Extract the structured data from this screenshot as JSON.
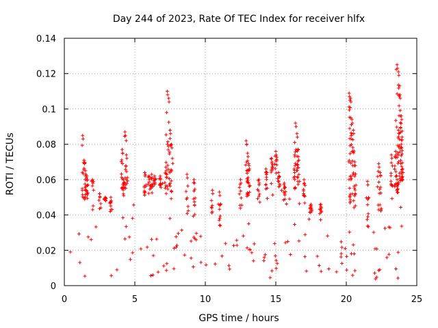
{
  "chart_data": {
    "type": "scatter",
    "title": "Day 244 of 2023, Rate Of TEC Index for receiver hlfx",
    "xlabel": "GPS time / hours",
    "ylabel": "ROTI / TECUs",
    "xlim": [
      0,
      25
    ],
    "ylim": [
      0,
      0.14
    ],
    "xticks": [
      "0",
      "5",
      "10",
      "15",
      "20",
      "25"
    ],
    "yticks": [
      "0",
      "0.02",
      "0.04",
      "0.06",
      "0.08",
      "0.1",
      "0.12",
      "0.14"
    ],
    "grid": true,
    "marker": "+",
    "series": [
      {
        "name": "ROTI",
        "color": "#ff0000",
        "x_range": [
          0,
          24
        ],
        "baseline": 0.014,
        "envelope": [
          [
            0.0,
            0.022
          ],
          [
            0.5,
            0.028
          ],
          [
            1.0,
            0.04
          ],
          [
            1.5,
            0.046
          ],
          [
            2.0,
            0.036
          ],
          [
            2.5,
            0.04
          ],
          [
            3.0,
            0.05
          ],
          [
            3.5,
            0.034
          ],
          [
            4.0,
            0.046
          ],
          [
            4.5,
            0.052
          ],
          [
            5.0,
            0.04
          ],
          [
            5.5,
            0.048
          ],
          [
            6.0,
            0.05
          ],
          [
            6.5,
            0.058
          ],
          [
            7.0,
            0.05
          ],
          [
            7.5,
            0.044
          ],
          [
            8.0,
            0.042
          ],
          [
            8.5,
            0.038
          ],
          [
            9.0,
            0.034
          ],
          [
            9.5,
            0.036
          ],
          [
            10.0,
            0.03
          ],
          [
            10.5,
            0.034
          ],
          [
            11.0,
            0.03
          ],
          [
            11.5,
            0.034
          ],
          [
            12.0,
            0.036
          ],
          [
            12.5,
            0.04
          ],
          [
            13.0,
            0.046
          ],
          [
            13.5,
            0.048
          ],
          [
            14.0,
            0.046
          ],
          [
            14.5,
            0.052
          ],
          [
            15.0,
            0.06
          ],
          [
            15.5,
            0.046
          ],
          [
            16.0,
            0.048
          ],
          [
            16.5,
            0.056
          ],
          [
            17.0,
            0.044
          ],
          [
            17.5,
            0.04
          ],
          [
            18.0,
            0.042
          ],
          [
            18.5,
            0.036
          ],
          [
            19.0,
            0.032
          ],
          [
            19.5,
            0.03
          ],
          [
            20.0,
            0.036
          ],
          [
            20.5,
            0.04
          ],
          [
            21.0,
            0.032
          ],
          [
            21.5,
            0.028
          ],
          [
            22.0,
            0.032
          ],
          [
            22.5,
            0.04
          ],
          [
            23.0,
            0.04
          ],
          [
            23.5,
            0.05
          ],
          [
            24.0,
            0.056
          ]
        ],
        "peaks": [
          [
            1.3,
            0.085
          ],
          [
            1.4,
            0.071
          ],
          [
            1.5,
            0.065
          ],
          [
            1.6,
            0.062
          ],
          [
            2.0,
            0.06
          ],
          [
            2.5,
            0.052
          ],
          [
            2.9,
            0.05
          ],
          [
            3.3,
            0.05
          ],
          [
            4.1,
            0.077
          ],
          [
            4.3,
            0.087
          ],
          [
            4.4,
            0.074
          ],
          [
            4.2,
            0.06
          ],
          [
            5.7,
            0.064
          ],
          [
            6.0,
            0.062
          ],
          [
            6.2,
            0.063
          ],
          [
            6.4,
            0.062
          ],
          [
            6.8,
            0.062
          ],
          [
            7.3,
            0.11
          ],
          [
            7.4,
            0.106
          ],
          [
            7.5,
            0.088
          ],
          [
            7.6,
            0.08
          ],
          [
            7.2,
            0.067
          ],
          [
            8.7,
            0.063
          ],
          [
            9.2,
            0.06
          ],
          [
            10.5,
            0.054
          ],
          [
            11.0,
            0.053
          ],
          [
            12.5,
            0.06
          ],
          [
            12.9,
            0.082
          ],
          [
            13.0,
            0.075
          ],
          [
            13.1,
            0.068
          ],
          [
            13.8,
            0.06
          ],
          [
            14.3,
            0.066
          ],
          [
            14.7,
            0.072
          ],
          [
            15.0,
            0.076
          ],
          [
            15.2,
            0.064
          ],
          [
            15.6,
            0.058
          ],
          [
            16.4,
            0.092
          ],
          [
            16.5,
            0.086
          ],
          [
            16.6,
            0.073
          ],
          [
            16.3,
            0.066
          ],
          [
            17.0,
            0.06
          ],
          [
            17.5,
            0.046
          ],
          [
            18.2,
            0.046
          ],
          [
            20.2,
            0.109
          ],
          [
            20.3,
            0.106
          ],
          [
            20.4,
            0.094
          ],
          [
            20.5,
            0.088
          ],
          [
            20.6,
            0.07
          ],
          [
            20.3,
            0.062
          ],
          [
            21.5,
            0.059
          ],
          [
            22.3,
            0.069
          ],
          [
            22.4,
            0.064
          ],
          [
            23.2,
            0.074
          ],
          [
            23.5,
            0.076
          ],
          [
            23.6,
            0.125
          ],
          [
            23.7,
            0.121
          ],
          [
            23.8,
            0.108
          ],
          [
            23.9,
            0.096
          ],
          [
            23.7,
            0.088
          ],
          [
            23.9,
            0.08
          ],
          [
            24.0,
            0.066
          ],
          [
            23.6,
            0.06
          ]
        ]
      }
    ]
  }
}
